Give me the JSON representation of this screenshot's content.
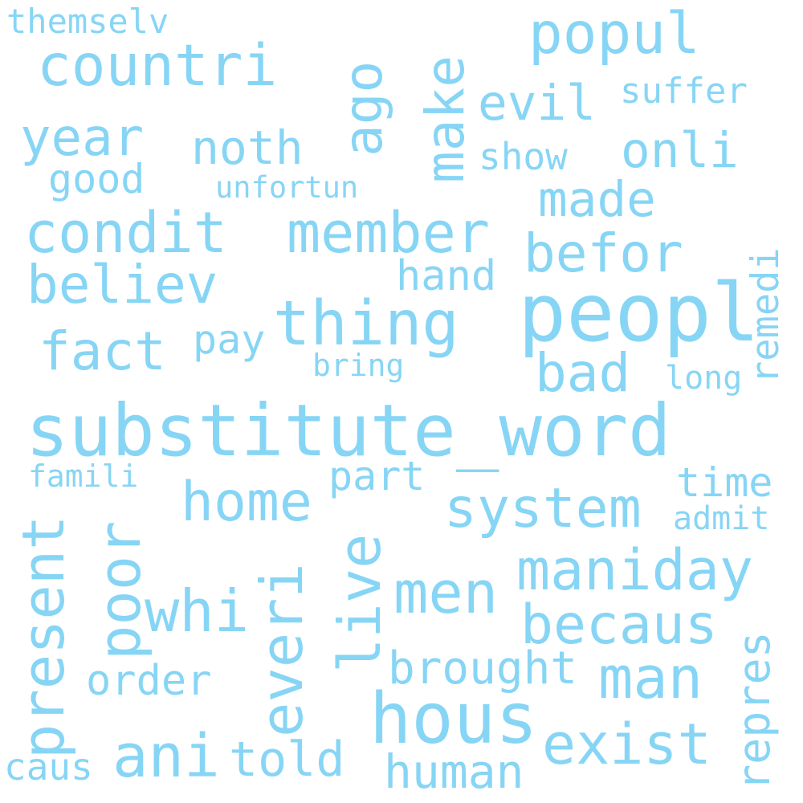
{
  "cloud": {
    "color": "#87d5f5",
    "words": [
      "themselv",
      "countri",
      "popul",
      "ago",
      "make",
      "evil",
      "suffer",
      "year",
      "noth",
      "onli",
      "show",
      "good",
      "unfortun",
      "made",
      "condit",
      "member",
      "remedi",
      "befor",
      "believ",
      "hand",
      "peopl",
      "thing",
      "pay",
      "fact",
      "bad",
      "bring",
      "long",
      "substitute_word",
      "famili",
      "part",
      "time",
      "system",
      "home",
      "admit",
      "present",
      "poor",
      "live",
      "maniday",
      "everi",
      "whi",
      "men",
      "becaus",
      "repres",
      "brought",
      "order",
      "man",
      "hous",
      "exist",
      "ani",
      "told",
      "caus",
      "human"
    ]
  }
}
